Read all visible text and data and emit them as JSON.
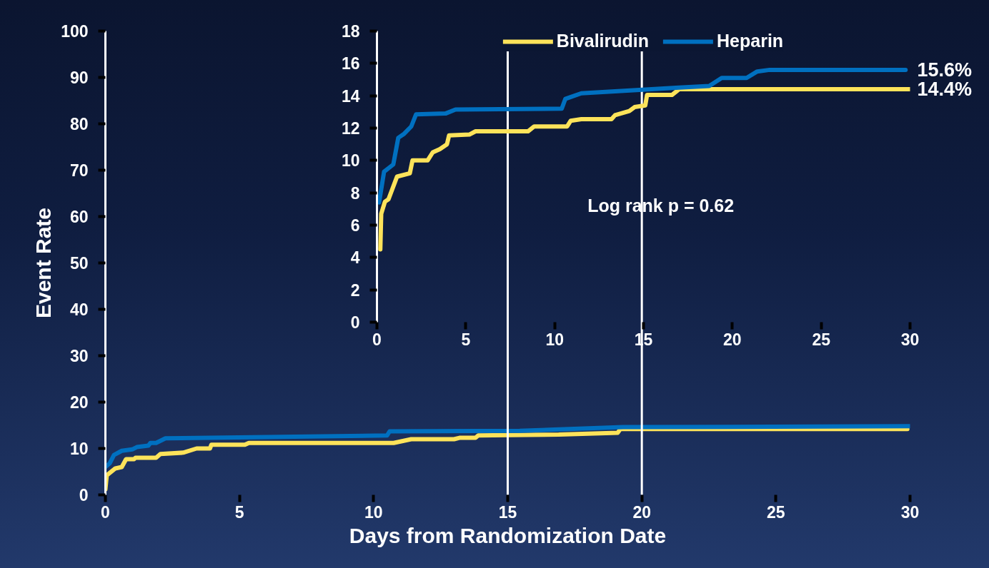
{
  "chart_data": [
    {
      "type": "line",
      "xlabel": "Days from Randomization Date",
      "ylabel": "Event Rate",
      "xlim": [
        0,
        30
      ],
      "ylim": [
        0,
        100
      ],
      "xticks": [
        0,
        5,
        10,
        15,
        20,
        25,
        30
      ],
      "yticks": [
        0,
        10,
        20,
        30,
        40,
        50,
        60,
        70,
        80,
        90,
        100
      ],
      "ref_lines": [
        {
          "axis": "x",
          "value": 15,
          "color": "#ffffff"
        },
        {
          "axis": "x",
          "value": 20,
          "color": "#ffffff"
        }
      ],
      "series": [
        {
          "color": "#fde35a",
          "x": [
            0,
            0.05,
            0.37,
            0.61,
            0.77,
            1.07,
            1.12,
            1.89,
            2.05,
            2.9,
            3.4,
            3.9,
            3.95,
            5.2,
            5.35,
            10.75,
            11.4,
            13.0,
            13.2,
            13.8,
            13.9,
            15.05,
            16.9,
            19.1,
            19.2,
            29.9
          ],
          "values": [
            1.2,
            4.2,
            5.7,
            6.0,
            7.7,
            7.7,
            8.0,
            8.0,
            8.8,
            9.1,
            10.0,
            10.0,
            10.8,
            10.8,
            11.2,
            11.2,
            12.0,
            12.0,
            12.3,
            12.3,
            12.8,
            12.9,
            13.0,
            13.4,
            14.2,
            14.2
          ]
        },
        {
          "color": "#0070c0",
          "x": [
            0,
            0.16,
            0.32,
            0.61,
            1.0,
            1.17,
            1.6,
            1.68,
            1.89,
            2.24,
            10.5,
            10.6,
            15.45,
            19.3,
            30
          ],
          "values": [
            6.0,
            6.8,
            8.6,
            9.5,
            9.8,
            10.3,
            10.6,
            11.2,
            11.2,
            12.2,
            12.8,
            13.7,
            13.8,
            14.6,
            14.8
          ]
        }
      ]
    },
    {
      "type": "line",
      "xlim": [
        0,
        30
      ],
      "ylim": [
        0,
        18
      ],
      "xticks": [
        0,
        5,
        10,
        15,
        20,
        25,
        30
      ],
      "yticks": [
        0,
        2,
        4,
        6,
        8,
        10,
        12,
        14,
        16,
        18
      ],
      "legend": "top",
      "annotations": [
        "Log rank p = 0.62"
      ],
      "series": [
        {
          "name": "Bivalirudin",
          "color": "#fde35a",
          "x": [
            0.19,
            0.24,
            0.45,
            0.65,
            1.13,
            1.85,
            2.0,
            2.85,
            3.14,
            3.54,
            3.94,
            4.06,
            5.2,
            5.55,
            8.5,
            8.85,
            10.7,
            10.9,
            11.5,
            13.2,
            13.4,
            14.2,
            14.5,
            15.1,
            15.2,
            16.6,
            17.0,
            30
          ],
          "values": [
            4.5,
            6.7,
            7.45,
            7.6,
            9.0,
            9.2,
            10.0,
            10.0,
            10.5,
            10.7,
            11.0,
            11.55,
            11.6,
            11.8,
            11.8,
            12.1,
            12.1,
            12.45,
            12.55,
            12.55,
            12.8,
            13.05,
            13.3,
            13.4,
            14.05,
            14.05,
            14.4,
            14.4
          ],
          "value_labels": [
            null,
            null,
            null,
            null,
            null,
            null,
            null,
            null,
            null,
            null,
            null,
            null,
            null,
            null,
            null,
            null,
            null,
            null,
            null,
            null,
            null,
            null,
            null,
            null,
            null,
            null,
            null,
            "14.4%"
          ]
        },
        {
          "name": "Heparin",
          "color": "#0070c0",
          "x": [
            0.12,
            0.4,
            0.92,
            1.2,
            1.53,
            1.93,
            2.2,
            3.86,
            4.42,
            10.4,
            10.6,
            11.5,
            17.0,
            18.7,
            19.4,
            20.8,
            21.4,
            22.1,
            22.8,
            29.75
          ],
          "values": [
            7.4,
            9.3,
            9.75,
            11.4,
            11.65,
            12.1,
            12.85,
            12.9,
            13.15,
            13.2,
            13.8,
            14.15,
            14.5,
            14.6,
            15.1,
            15.1,
            15.5,
            15.6,
            15.6,
            15.6
          ],
          "value_labels": [
            null,
            null,
            null,
            null,
            null,
            null,
            null,
            null,
            null,
            null,
            null,
            null,
            null,
            null,
            null,
            null,
            null,
            null,
            null,
            "15.6%"
          ]
        }
      ]
    }
  ]
}
